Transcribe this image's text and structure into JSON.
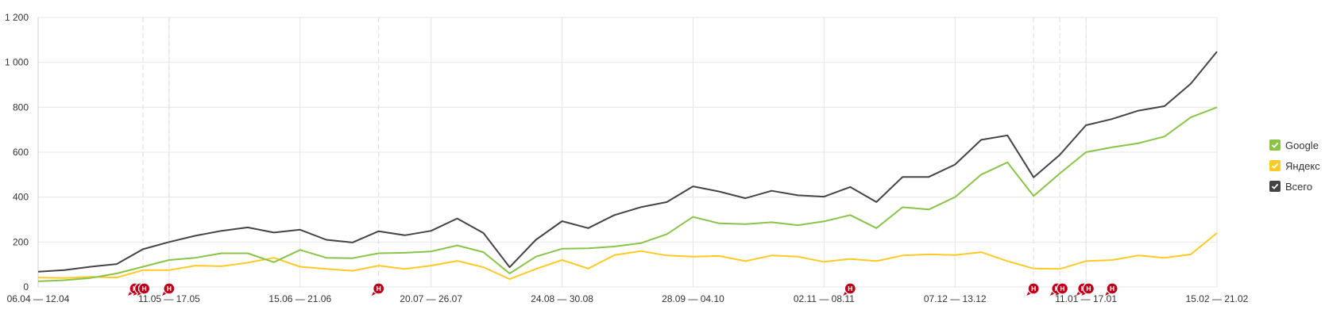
{
  "chart_data": {
    "type": "line",
    "title": "",
    "xlabel": "",
    "ylabel": "",
    "ylim": [
      0,
      1200
    ],
    "yticks": [
      0,
      200,
      400,
      600,
      800,
      1000,
      1200
    ],
    "yticks_labels": [
      "0",
      "200",
      "400",
      "600",
      "800",
      "1 000",
      "1 200"
    ],
    "grid": true,
    "legend_position": "right",
    "x_tick_labels": [
      "06.04 — 12.04",
      "11.05 — 17.05",
      "15.06 — 21.06",
      "20.07 — 26.07",
      "24.08 — 30.08",
      "28.09 — 04.10",
      "02.11 — 08.11",
      "07.12 — 13.12",
      "11.01 — 17.01",
      "15.02 — 21.02"
    ],
    "x_tick_positions": [
      0,
      5,
      10,
      15,
      20,
      25,
      30,
      35,
      40,
      45
    ],
    "series": [
      {
        "name": "Google",
        "color": "#8bc34a",
        "values": [
          25,
          30,
          40,
          60,
          90,
          120,
          130,
          150,
          150,
          110,
          165,
          130,
          128,
          150,
          152,
          158,
          185,
          155,
          60,
          135,
          170,
          172,
          180,
          195,
          235,
          312,
          283,
          280,
          288,
          275,
          292,
          320,
          262,
          355,
          345,
          400,
          500,
          555,
          405,
          505,
          600,
          622,
          640,
          670,
          755,
          800
        ]
      },
      {
        "name": "Яндекс",
        "color": "#ffc926",
        "values": [
          42,
          40,
          45,
          42,
          75,
          75,
          95,
          92,
          108,
          130,
          90,
          80,
          72,
          95,
          80,
          95,
          116,
          88,
          35,
          80,
          120,
          82,
          142,
          160,
          140,
          135,
          138,
          115,
          140,
          135,
          112,
          125,
          115,
          140,
          145,
          142,
          155,
          115,
          82,
          80,
          115,
          120,
          140,
          130,
          145,
          240
        ]
      },
      {
        "name": "Всего",
        "color": "#444444",
        "values": [
          68,
          75,
          90,
          102,
          168,
          200,
          228,
          250,
          265,
          242,
          255,
          210,
          198,
          248,
          230,
          250,
          305,
          240,
          88,
          210,
          293,
          262,
          320,
          355,
          378,
          448,
          425,
          395,
          428,
          408,
          402,
          445,
          378,
          490,
          490,
          545,
          655,
          675,
          488,
          588,
          720,
          748,
          785,
          805,
          905,
          1048
        ]
      }
    ],
    "annotations": [
      {
        "x": 3.7,
        "label": "Н"
      },
      {
        "x": 3.9,
        "label": "Н"
      },
      {
        "x": 4.05,
        "label": "Н"
      },
      {
        "x": 5.0,
        "label": "Н"
      },
      {
        "x": 13.0,
        "label": "Н"
      },
      {
        "x": 31.0,
        "label": "Н"
      },
      {
        "x": 38.0,
        "label": "Н"
      },
      {
        "x": 38.9,
        "label": "Н"
      },
      {
        "x": 39.1,
        "label": "Н"
      },
      {
        "x": 39.9,
        "label": "Н"
      },
      {
        "x": 40.1,
        "label": "Н"
      },
      {
        "x": 41.0,
        "label": "Н"
      }
    ],
    "dashed_vlines": [
      4,
      5,
      13,
      38,
      39,
      40
    ]
  }
}
